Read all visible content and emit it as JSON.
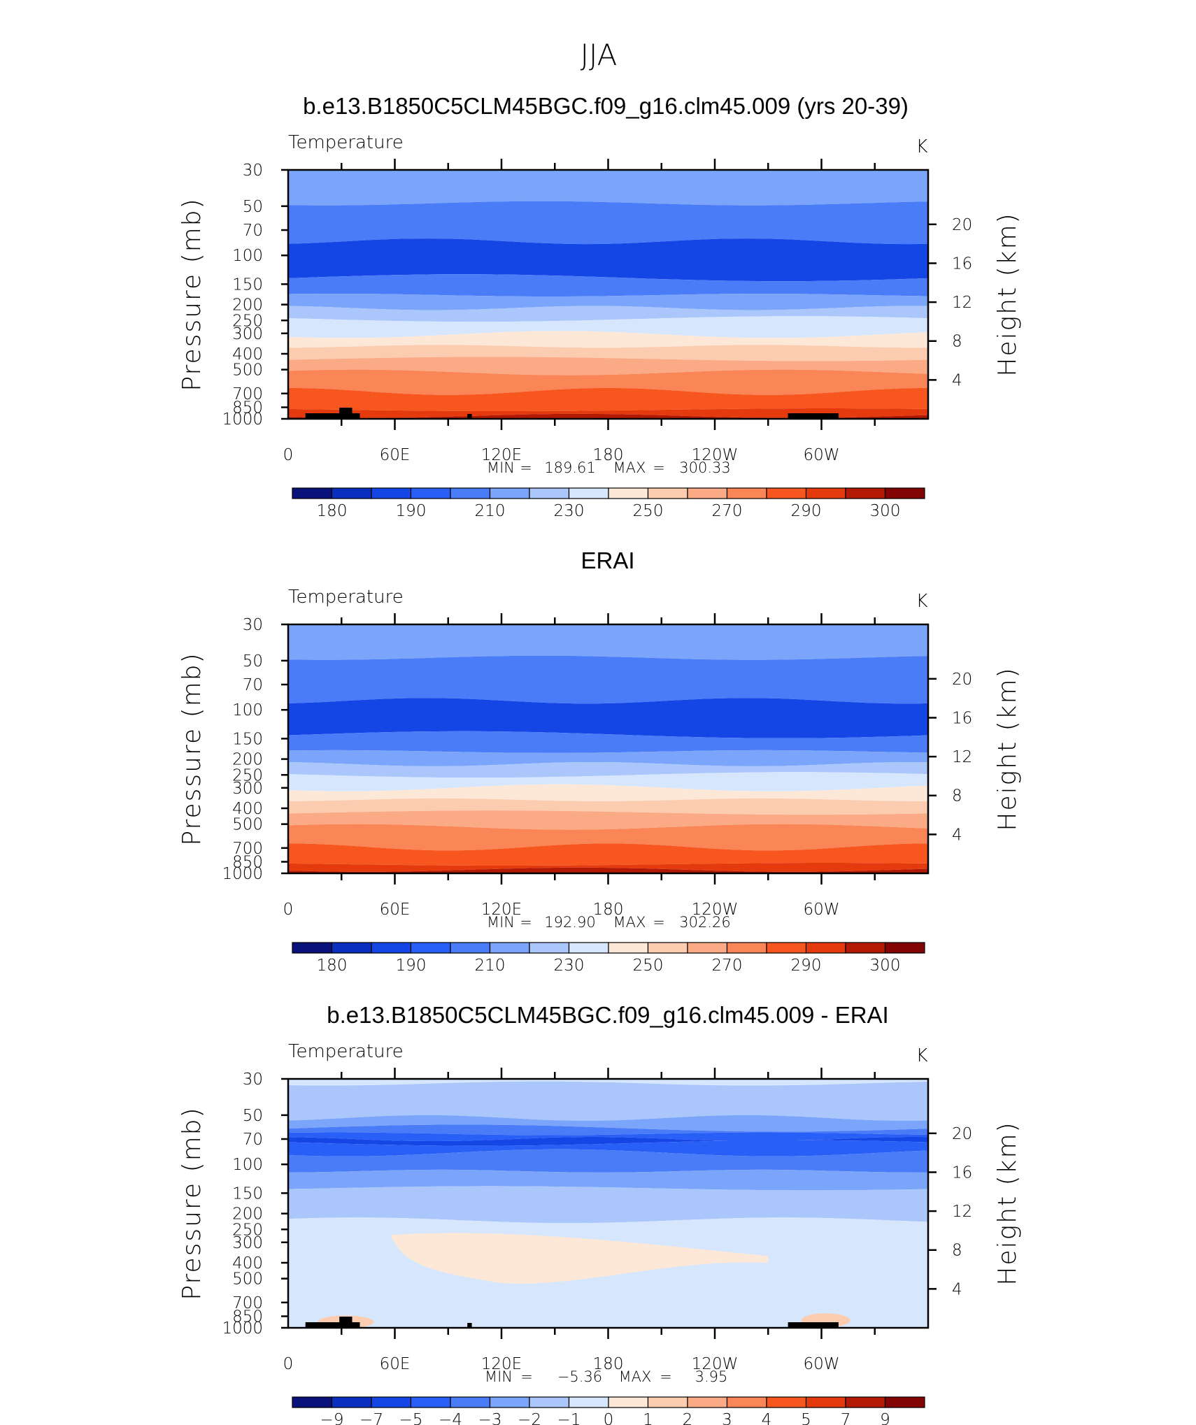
{
  "figure": {
    "title": "JJA"
  },
  "chart_data": [
    {
      "type": "heatmap",
      "title": "b.e13.B1850C5CLM45BGC.f09_g16.clm45.009 (yrs 20-39)",
      "left_label": "Temperature",
      "units": "K",
      "ylabel": "Pressure (mb)",
      "ylabel2": "Height (km)",
      "x_ticks": [
        "0",
        "60E",
        "120E",
        "180",
        "120W",
        "60W"
      ],
      "y_ticks": [
        "30",
        "50",
        "70",
        "100",
        "150",
        "200",
        "250",
        "300",
        "400",
        "500",
        "700",
        "850",
        "1000"
      ],
      "y2_ticks": [
        "20",
        "16",
        "12",
        "8",
        "4"
      ],
      "ylim": [
        1000,
        30
      ],
      "xlim": [
        0,
        360
      ],
      "stats": {
        "min_label": "MIN",
        "max_label": "MAX",
        "min": "189.61",
        "max": "300.33"
      },
      "colorbar": {
        "labels": [
          "180",
          "190",
          "210",
          "230",
          "250",
          "270",
          "290",
          "300"
        ],
        "colors": [
          "#08127a",
          "#0a2fbe",
          "#1446e6",
          "#285ff7",
          "#4a7cf8",
          "#7aa5fa",
          "#aac6fb",
          "#d6e7fd",
          "#fde8d7",
          "#fcccb0",
          "#fbaa86",
          "#fa8556",
          "#f7571f",
          "#e43a0d",
          "#b21a05",
          "#820404"
        ]
      },
      "levels": [
        {
          "p": 30,
          "color": "#7aa5fa"
        },
        {
          "p": 48,
          "color": "#4a7cf8"
        },
        {
          "p": 82,
          "color": "#1446e6"
        },
        {
          "p": 137,
          "color": "#4a7cf8"
        },
        {
          "p": 175,
          "color": "#7aa5fa"
        },
        {
          "p": 210,
          "color": "#aac6fb"
        },
        {
          "p": 245,
          "color": "#d6e7fd"
        },
        {
          "p": 305,
          "color": "#fde8d7"
        },
        {
          "p": 360,
          "color": "#fcccb0"
        },
        {
          "p": 430,
          "color": "#fbaa86"
        },
        {
          "p": 520,
          "color": "#fa8556"
        },
        {
          "p": 680,
          "color": "#f7571f"
        },
        {
          "p": 880,
          "color": "#e43a0d"
        },
        {
          "p": 960,
          "color": "#b21a05"
        },
        {
          "p": 1000,
          "color": "#b21a05"
        }
      ],
      "topography": true
    },
    {
      "type": "heatmap",
      "title": "ERAI",
      "left_label": "Temperature",
      "units": "K",
      "ylabel": "Pressure (mb)",
      "ylabel2": "Height (km)",
      "x_ticks": [
        "0",
        "60E",
        "120E",
        "180",
        "120W",
        "60W"
      ],
      "y_ticks": [
        "30",
        "50",
        "70",
        "100",
        "150",
        "200",
        "250",
        "300",
        "400",
        "500",
        "700",
        "850",
        "1000"
      ],
      "y2_ticks": [
        "20",
        "16",
        "12",
        "8",
        "4"
      ],
      "ylim": [
        1000,
        30
      ],
      "xlim": [
        0,
        360
      ],
      "stats": {
        "min_label": "MIN",
        "max_label": "MAX",
        "min": "192.90",
        "max": "302.26"
      },
      "colorbar": {
        "labels": [
          "180",
          "190",
          "210",
          "230",
          "250",
          "270",
          "290",
          "300"
        ],
        "colors": [
          "#08127a",
          "#0a2fbe",
          "#1446e6",
          "#285ff7",
          "#4a7cf8",
          "#7aa5fa",
          "#aac6fb",
          "#d6e7fd",
          "#fde8d7",
          "#fcccb0",
          "#fbaa86",
          "#fa8556",
          "#f7571f",
          "#e43a0d",
          "#b21a05",
          "#820404"
        ]
      },
      "levels": [
        {
          "p": 30,
          "color": "#7aa5fa"
        },
        {
          "p": 48,
          "color": "#4a7cf8"
        },
        {
          "p": 88,
          "color": "#1446e6"
        },
        {
          "p": 142,
          "color": "#4a7cf8"
        },
        {
          "p": 180,
          "color": "#7aa5fa"
        },
        {
          "p": 215,
          "color": "#aac6fb"
        },
        {
          "p": 250,
          "color": "#d6e7fd"
        },
        {
          "p": 300,
          "color": "#fde8d7"
        },
        {
          "p": 355,
          "color": "#fcccb0"
        },
        {
          "p": 425,
          "color": "#fbaa86"
        },
        {
          "p": 520,
          "color": "#fa8556"
        },
        {
          "p": 690,
          "color": "#f7571f"
        },
        {
          "p": 880,
          "color": "#e43a0d"
        },
        {
          "p": 950,
          "color": "#b21a05"
        },
        {
          "p": 1000,
          "color": "#b21a05"
        }
      ],
      "topography": false
    },
    {
      "type": "heatmap",
      "title": "b.e13.B1850C5CLM45BGC.f09_g16.clm45.009 - ERAI",
      "left_label": "Temperature",
      "units": "K",
      "ylabel": "Pressure (mb)",
      "ylabel2": "Height (km)",
      "x_ticks": [
        "0",
        "60E",
        "120E",
        "180",
        "120W",
        "60W"
      ],
      "y_ticks": [
        "30",
        "50",
        "70",
        "100",
        "150",
        "200",
        "250",
        "300",
        "400",
        "500",
        "700",
        "850",
        "1000"
      ],
      "y2_ticks": [
        "20",
        "16",
        "12",
        "8",
        "4"
      ],
      "ylim": [
        1000,
        30
      ],
      "xlim": [
        0,
        360
      ],
      "stats": {
        "min_label": "MIN",
        "max_label": "MAX",
        "min": "−5.36",
        "max": "3.95"
      },
      "colorbar": {
        "labels": [
          "−9",
          "−7",
          "−5",
          "−4",
          "−3",
          "−2",
          "−1",
          "0",
          "1",
          "2",
          "3",
          "4",
          "5",
          "7",
          "9"
        ],
        "colors": [
          "#08127a",
          "#0a2fbe",
          "#1446e6",
          "#285ff7",
          "#4a7cf8",
          "#7aa5fa",
          "#aac6fb",
          "#d6e7fd",
          "#fde8d7",
          "#fcccb0",
          "#fbaa86",
          "#fa8556",
          "#f7571f",
          "#e43a0d",
          "#b21a05",
          "#820404"
        ]
      },
      "levels": [
        {
          "p": 30,
          "color": "#d6e7fd"
        },
        {
          "p": 32,
          "color": "#aac6fb"
        },
        {
          "p": 52,
          "color": "#7aa5fa"
        },
        {
          "p": 60,
          "color": "#4a7cf8"
        },
        {
          "p": 65,
          "color": "#285ff7"
        },
        {
          "p": 70,
          "color": "#1446e6"
        },
        {
          "p": 74,
          "color": "#285ff7"
        },
        {
          "p": 85,
          "color": "#4a7cf8"
        },
        {
          "p": 110,
          "color": "#7aa5fa"
        },
        {
          "p": 140,
          "color": "#aac6fb"
        },
        {
          "p": 220,
          "color": "#d6e7fd"
        },
        {
          "p": 1000,
          "color": "#d6e7fd"
        }
      ],
      "topography": true
    }
  ]
}
